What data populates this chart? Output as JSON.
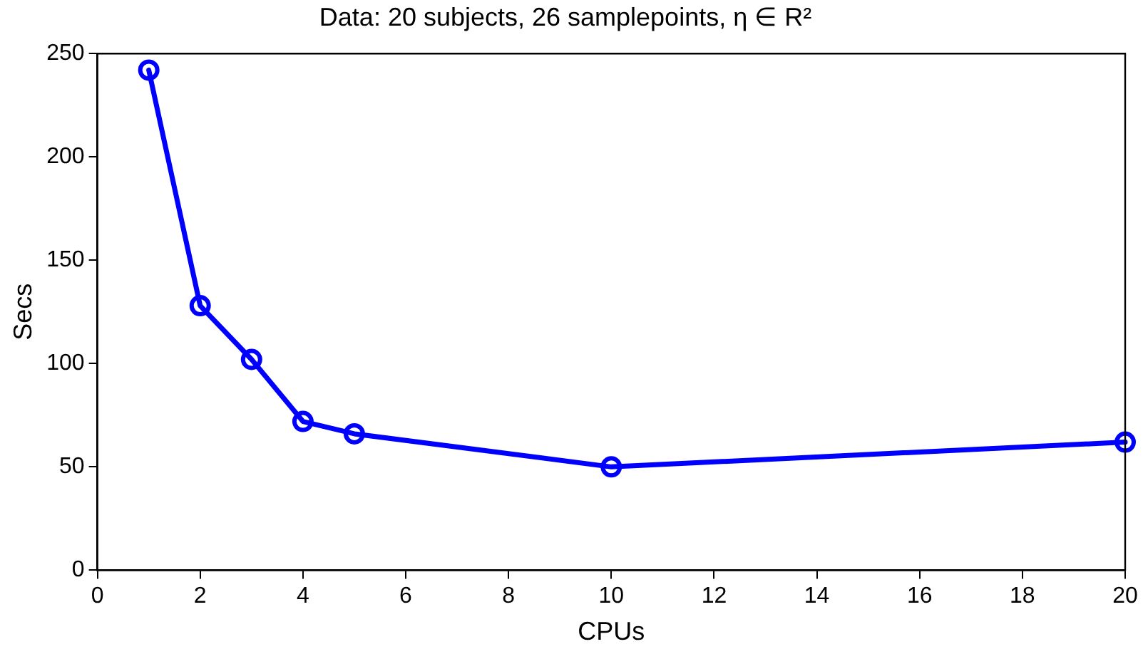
{
  "chart_data": {
    "type": "line",
    "title": "Data: 20 subjects, 26 samplepoints, η ∈ R²",
    "xlabel": "CPUs",
    "ylabel": "Secs",
    "x": [
      1,
      2,
      3,
      4,
      5,
      10,
      20
    ],
    "series": [
      {
        "color": "#0000ff",
        "values": [
          242,
          128,
          102,
          72,
          66,
          50,
          62
        ]
      }
    ],
    "xlim": [
      0,
      20
    ],
    "xticks": [
      0,
      2,
      4,
      6,
      8,
      10,
      12,
      14,
      16,
      18,
      20
    ],
    "ylim": [
      0,
      250
    ],
    "yticks": [
      0,
      50,
      100,
      150,
      200,
      250
    ],
    "grid": false,
    "legend": false,
    "marker": "circle",
    "line_style": "solid"
  }
}
